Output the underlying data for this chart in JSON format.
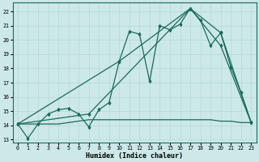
{
  "xlabel": "Humidex (Indice chaleur)",
  "bg_color": "#cce8e8",
  "grid_color": "#b8d8d8",
  "line_color": "#1a6b5a",
  "xlim": [
    -0.5,
    23.5
  ],
  "ylim": [
    12.8,
    22.6
  ],
  "xticks": [
    0,
    1,
    2,
    3,
    4,
    5,
    6,
    7,
    8,
    9,
    10,
    11,
    12,
    13,
    14,
    15,
    16,
    17,
    18,
    19,
    20,
    21,
    22,
    23
  ],
  "yticks": [
    13,
    14,
    15,
    16,
    17,
    18,
    19,
    20,
    21,
    22
  ],
  "series1_x": [
    0,
    1,
    2,
    3,
    4,
    5,
    6,
    7,
    8,
    9,
    10,
    11,
    12,
    13,
    14,
    15,
    16,
    17,
    18,
    19,
    20,
    21,
    22,
    23
  ],
  "series1_y": [
    14.1,
    13.1,
    14.1,
    14.8,
    15.1,
    15.2,
    14.8,
    13.9,
    15.1,
    15.6,
    18.5,
    20.6,
    20.4,
    17.1,
    21.0,
    20.7,
    21.1,
    22.2,
    21.4,
    19.6,
    20.5,
    18.1,
    16.3,
    14.2
  ],
  "series2_x": [
    0,
    7,
    17,
    20,
    23
  ],
  "series2_y": [
    14.1,
    14.8,
    22.2,
    19.6,
    14.2
  ],
  "series3_x": [
    0,
    10,
    17,
    20,
    23
  ],
  "series3_y": [
    14.1,
    18.5,
    22.2,
    20.5,
    14.2
  ],
  "flat_x": [
    0,
    1,
    2,
    3,
    4,
    5,
    6,
    7,
    8,
    9,
    10,
    11,
    12,
    13,
    14,
    15,
    16,
    17,
    18,
    19,
    20,
    21,
    22,
    23
  ],
  "flat_y": [
    14.1,
    14.1,
    14.1,
    14.1,
    14.1,
    14.2,
    14.3,
    14.4,
    14.4,
    14.4,
    14.4,
    14.4,
    14.4,
    14.4,
    14.4,
    14.4,
    14.4,
    14.4,
    14.4,
    14.4,
    14.3,
    14.3,
    14.2,
    14.2
  ],
  "lw": 0.9,
  "ms": 2.0,
  "xlabel_fontsize": 6.0,
  "tick_fontsize": 4.8
}
